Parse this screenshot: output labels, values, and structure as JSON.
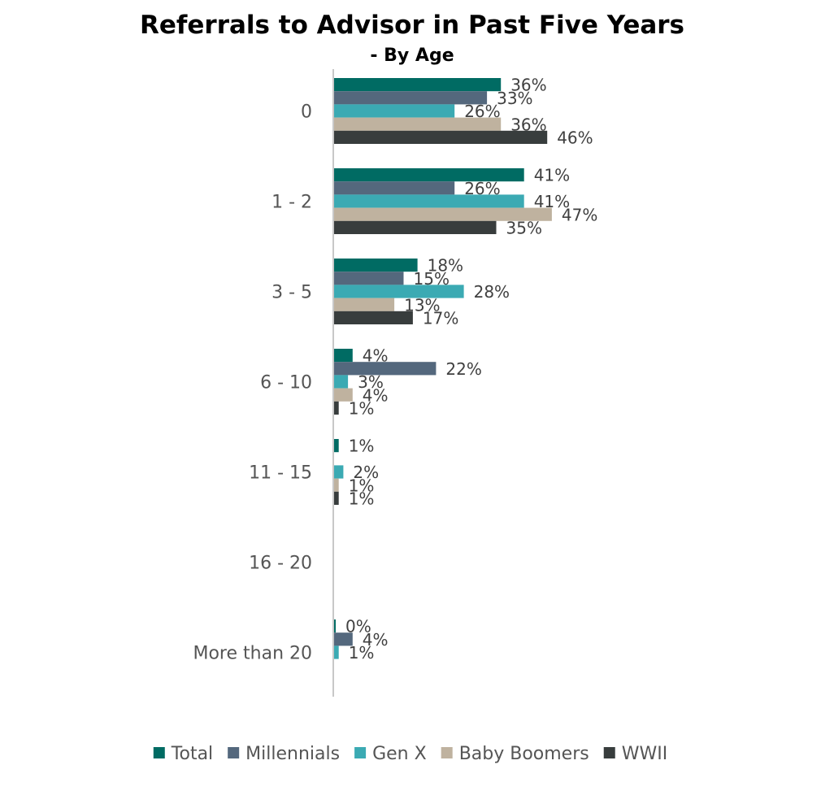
{
  "chart_data": {
    "type": "bar",
    "orientation": "horizontal",
    "title": "Referrals to Advisor in Past Five Years",
    "subtitle": "- By Age",
    "categories": [
      "0",
      "1 - 2",
      "3 - 5",
      "6 - 10",
      "11 - 15",
      "16 - 20",
      "More than 20"
    ],
    "series": [
      {
        "name": "Total",
        "color": "#006B63",
        "values": [
          36,
          41,
          18,
          4,
          1,
          null,
          0
        ],
        "labels": [
          "36%",
          "41%",
          "18%",
          "4%",
          "1%",
          "",
          "0%"
        ]
      },
      {
        "name": "Millennials",
        "color": "#54687D",
        "values": [
          33,
          26,
          15,
          22,
          null,
          null,
          4
        ],
        "labels": [
          "33%",
          "26%",
          "15%",
          "22%",
          "",
          "",
          "4%"
        ]
      },
      {
        "name": "Gen X",
        "color": "#3BAAB3",
        "values": [
          26,
          41,
          28,
          3,
          2,
          null,
          1
        ],
        "labels": [
          "26%",
          "41%",
          "28%",
          "3%",
          "2%",
          "",
          "1%"
        ]
      },
      {
        "name": "Baby Boomers",
        "color": "#BFB29F",
        "values": [
          36,
          47,
          13,
          4,
          1,
          null,
          null
        ],
        "labels": [
          "36%",
          "47%",
          "13%",
          "4%",
          "1%",
          "",
          ""
        ]
      },
      {
        "name": "WWII",
        "color": "#383D3D",
        "values": [
          46,
          35,
          17,
          1,
          1,
          null,
          null
        ],
        "labels": [
          "46%",
          "35%",
          "17%",
          "1%",
          "1%",
          "",
          ""
        ]
      }
    ],
    "xlim": [
      0,
      100
    ],
    "grid": false,
    "legend_position": "bottom"
  }
}
